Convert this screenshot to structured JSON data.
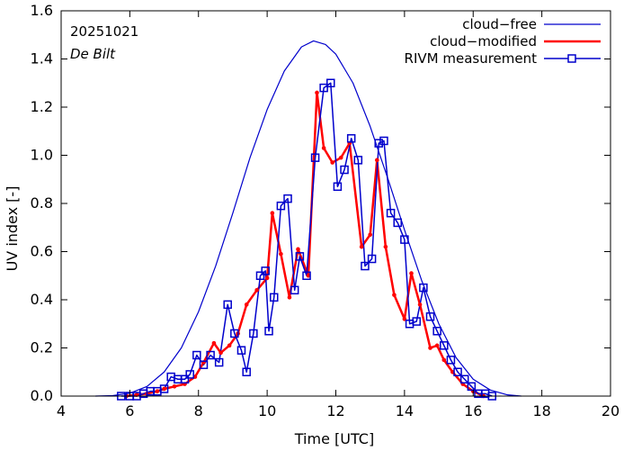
{
  "chart_data": {
    "type": "line",
    "xlabel": "Time  [UTC]",
    "ylabel": "UV index  [-]",
    "xlim": [
      4,
      20
    ],
    "ylim": [
      0,
      1.6
    ],
    "xticks": [
      4,
      6,
      8,
      10,
      12,
      14,
      16,
      18,
      20
    ],
    "yticks": [
      0.0,
      0.2,
      0.4,
      0.6,
      0.8,
      1.0,
      1.2,
      1.4,
      1.6
    ],
    "ytick_labels": [
      "0.0",
      "0.2",
      "0.4",
      "0.6",
      "0.8",
      "1.0",
      "1.2",
      "1.4",
      "1.6"
    ],
    "xtick_labels": [
      "4",
      "6",
      "8",
      "10",
      "12",
      "14",
      "16",
      "18",
      "20"
    ],
    "annotations": {
      "date": "20251021",
      "station": "De Bilt"
    },
    "legend_position": "top-right",
    "series": [
      {
        "name": "cloud−free",
        "color": "#0000cc",
        "style": "line",
        "x": [
          5.0,
          5.5,
          6.0,
          6.5,
          7.0,
          7.5,
          8.0,
          8.5,
          9.0,
          9.5,
          10.0,
          10.5,
          11.0,
          11.35,
          11.7,
          12.0,
          12.5,
          13.0,
          13.5,
          14.0,
          14.5,
          15.0,
          15.5,
          16.0,
          16.5,
          17.0,
          17.4
        ],
        "y": [
          0.0,
          0.002,
          0.012,
          0.04,
          0.1,
          0.2,
          0.35,
          0.54,
          0.76,
          0.99,
          1.19,
          1.35,
          1.45,
          1.475,
          1.46,
          1.42,
          1.3,
          1.12,
          0.91,
          0.69,
          0.48,
          0.3,
          0.16,
          0.07,
          0.025,
          0.005,
          0.0
        ]
      },
      {
        "name": "cloud−modified",
        "color": "#ff0000",
        "style": "line-dot",
        "x": [
          5.9,
          6.2,
          6.5,
          6.8,
          7.0,
          7.3,
          7.6,
          7.9,
          8.15,
          8.45,
          8.65,
          8.9,
          9.15,
          9.4,
          9.7,
          10.0,
          10.15,
          10.4,
          10.65,
          10.9,
          11.2,
          11.45,
          11.65,
          11.9,
          12.15,
          12.4,
          12.75,
          13.0,
          13.2,
          13.45,
          13.7,
          14.0,
          14.2,
          14.45,
          14.75,
          14.95,
          15.15,
          15.4,
          15.7,
          16.0,
          16.3
        ],
        "y": [
          0.0,
          0.005,
          0.01,
          0.02,
          0.03,
          0.04,
          0.05,
          0.08,
          0.14,
          0.22,
          0.18,
          0.21,
          0.26,
          0.38,
          0.44,
          0.49,
          0.76,
          0.59,
          0.41,
          0.61,
          0.5,
          1.26,
          1.03,
          0.97,
          0.99,
          1.05,
          0.62,
          0.67,
          0.98,
          0.62,
          0.42,
          0.32,
          0.51,
          0.38,
          0.2,
          0.21,
          0.15,
          0.1,
          0.05,
          0.02,
          0.0
        ]
      },
      {
        "name": "RIVM measurement",
        "color": "#0000cc",
        "style": "line-square",
        "x": [
          5.75,
          6.0,
          6.2,
          6.4,
          6.6,
          6.8,
          7.0,
          7.2,
          7.4,
          7.6,
          7.75,
          7.95,
          8.15,
          8.35,
          8.6,
          8.85,
          9.05,
          9.25,
          9.4,
          9.6,
          9.8,
          9.95,
          10.05,
          10.2,
          10.4,
          10.6,
          10.8,
          10.95,
          11.15,
          11.4,
          11.65,
          11.85,
          12.05,
          12.25,
          12.45,
          12.65,
          12.85,
          13.05,
          13.25,
          13.4,
          13.6,
          13.8,
          14.0,
          14.15,
          14.35,
          14.55,
          14.75,
          14.95,
          15.15,
          15.35,
          15.55,
          15.75,
          15.95,
          16.15,
          16.35,
          16.55
        ],
        "y": [
          0.0,
          0.0,
          0.0,
          0.01,
          0.02,
          0.02,
          0.03,
          0.08,
          0.07,
          0.07,
          0.09,
          0.17,
          0.13,
          0.17,
          0.14,
          0.38,
          0.26,
          0.19,
          0.1,
          0.26,
          0.5,
          0.52,
          0.27,
          0.41,
          0.79,
          0.82,
          0.44,
          0.58,
          0.5,
          0.99,
          1.28,
          1.3,
          0.87,
          0.94,
          1.07,
          0.98,
          0.54,
          0.57,
          1.05,
          1.06,
          0.76,
          0.72,
          0.65,
          0.3,
          0.31,
          0.45,
          0.33,
          0.27,
          0.21,
          0.15,
          0.1,
          0.07,
          0.04,
          0.01,
          0.01,
          0.0
        ]
      }
    ]
  }
}
